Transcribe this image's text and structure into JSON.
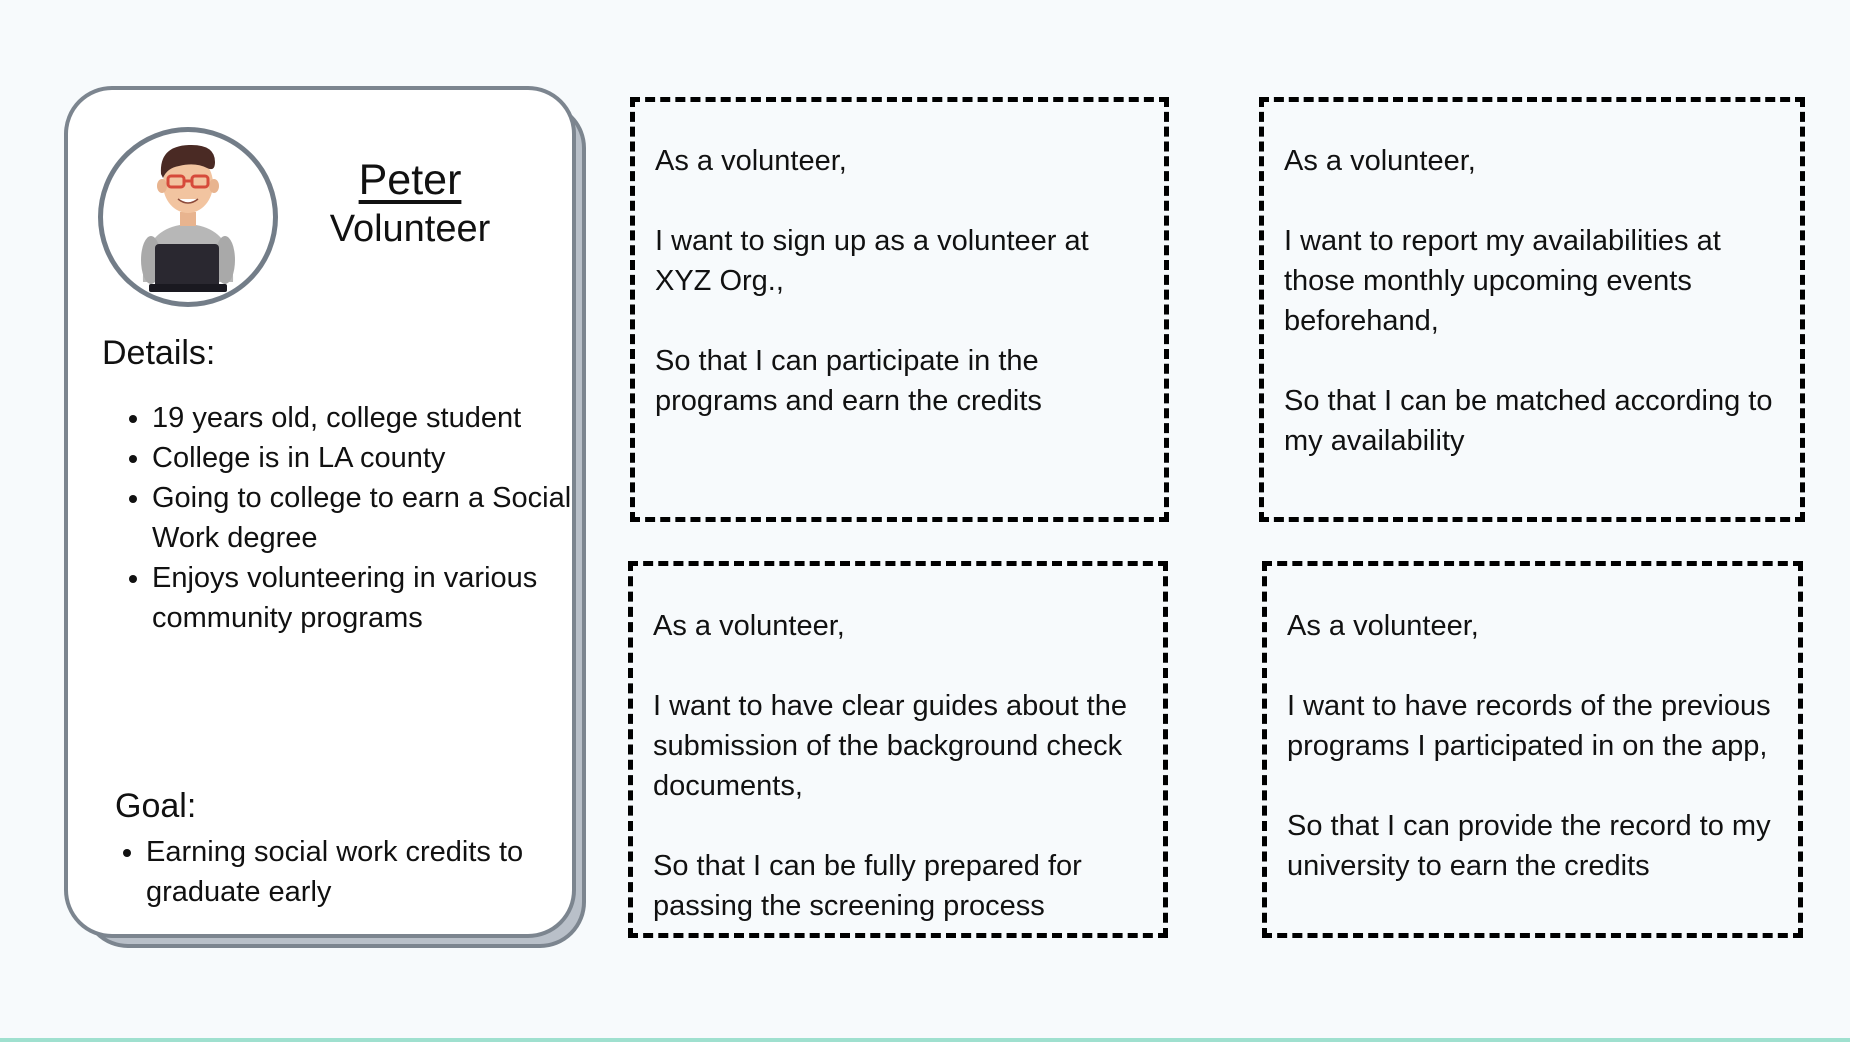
{
  "persona": {
    "name": "Peter",
    "role": "Volunteer",
    "avatar_icon": "person-with-laptop-icon",
    "details_heading": "Details:",
    "details": [
      "19 years old, college student",
      "College is in LA county",
      "Going to college to earn a Social Work degree",
      "Enjoys volunteering in various community programs"
    ],
    "goal_heading": "Goal:",
    "goals": [
      "Earning social work credits to graduate early"
    ]
  },
  "stories": [
    {
      "role_line": "As a volunteer,",
      "want_line": "I want to sign up as a volunteer at XYZ Org.,",
      "benefit_line": "So that I can participate in the programs and earn the credits"
    },
    {
      "role_line": "As a volunteer,",
      "want_line": "I want to report my availabilities at those monthly upcoming events beforehand,",
      "benefit_line": "So that I can be matched according to my availability"
    },
    {
      "role_line": "As a volunteer,",
      "want_line": "I want to have clear guides about the submission of the background check documents,",
      "benefit_line": "So that I can be fully prepared for passing the screening process"
    },
    {
      "role_line": "As a volunteer,",
      "want_line": "I want to have records of the previous programs I participated in on the app,",
      "benefit_line": "So that I can provide the record to my university to earn the credits"
    }
  ],
  "colors": {
    "background": "#f7fafc",
    "card_border": "#7c858f",
    "card_shadow": "#b9c0c9",
    "accent_rule": "#9fe0cf"
  }
}
